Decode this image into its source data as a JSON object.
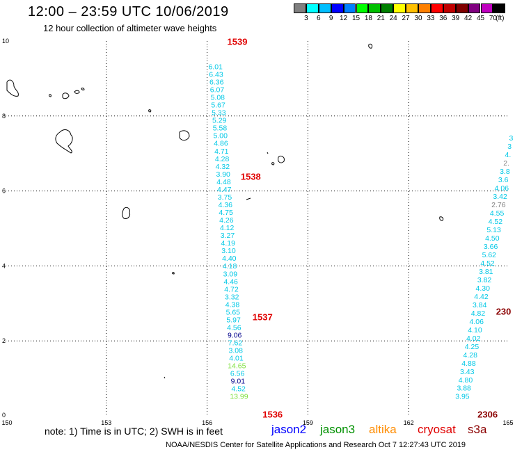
{
  "header": {
    "title": "12:00 – 23:59 UTC 10/06/2019",
    "subtitle": "12 hour collection of altimeter wave heights"
  },
  "colorbar": {
    "colors": [
      "#808080",
      "#00ffff",
      "#00bfff",
      "#0000ff",
      "#0080ff",
      "#00ff00",
      "#00c000",
      "#008000",
      "#ffff00",
      "#ffc000",
      "#ff8000",
      "#ff0000",
      "#c00000",
      "#800000",
      "#800080",
      "#c000c0",
      "#000000"
    ],
    "labels": [
      "3",
      "6",
      "9",
      "12",
      "15",
      "18",
      "21",
      "24",
      "27",
      "30",
      "33",
      "36",
      "39",
      "42",
      "45",
      "70"
    ],
    "unit": "(ft)"
  },
  "axes": {
    "x_ticks": [
      "150",
      "153",
      "156",
      "159",
      "162",
      "165"
    ],
    "y_ticks": [
      "10",
      "8",
      "6",
      "4",
      "2",
      "0"
    ]
  },
  "chart_data": {
    "type": "scatter",
    "xlim": [
      150,
      165
    ],
    "ylim": [
      0,
      10
    ],
    "grid": true,
    "tracks": [
      {
        "color": "#00c8e6",
        "lon_start": 156.25,
        "lat_start": 9.25,
        "lon_end": 156.95,
        "lat_end": 0.45,
        "values": [
          "6.01",
          "6.43",
          "6.36",
          "6.07",
          "5.08",
          "5.67",
          "5.33",
          "5.29",
          "5.58",
          "5.00",
          "4.86",
          "4.71",
          "4.28",
          "4.32",
          "3.90",
          "4.48",
          "4.47",
          "3.75",
          "4.36",
          "4.75",
          "4.26",
          "4.12",
          "3.27",
          "4.19",
          "3.10",
          "4.40",
          "4.18",
          "3.09",
          "4.46",
          "4.72",
          "3.32",
          "4.38",
          "5.65",
          "5.97",
          "4.56",
          "9.06",
          "7.62",
          "3.08",
          "4.01",
          "14.65",
          "6.56",
          "9.01",
          "4.52",
          "13.99"
        ],
        "colors": {
          "35": "#00008b",
          "39": "#80e040",
          "41": "#00008b",
          "43": "#80e040"
        }
      },
      {
        "color": "#00c8e6",
        "lon_start": 165.05,
        "lat_start": 7.35,
        "lon_end": 163.6,
        "lat_end": 0.45,
        "values": [
          "3",
          "3",
          "4.",
          "2.",
          "3.8",
          "3.6",
          "4.06",
          "3.42",
          "2.76",
          "4.55",
          "4.52",
          "5.13",
          "4.50",
          "3.66",
          "5.62",
          "4.52",
          "3.81",
          "3.82",
          "4.30",
          "4.42",
          "3.84",
          "4.82",
          "4.06",
          "4.10",
          "4.02",
          "4.25",
          "4.28",
          "4.88",
          "3.43",
          "4.80",
          "3.88",
          "3.95"
        ],
        "colors": {
          "3": "#808080",
          "8": "#808080"
        }
      }
    ],
    "pass_times": [
      {
        "text": "1539",
        "lon": 156.6,
        "lat": 9.9,
        "color": "#e00000"
      },
      {
        "text": "1538",
        "lon": 157.0,
        "lat": 6.3,
        "color": "#e00000"
      },
      {
        "text": "1537",
        "lon": 157.35,
        "lat": 2.55,
        "color": "#e00000"
      },
      {
        "text": "1536",
        "lon": 157.65,
        "lat": -0.05,
        "color": "#e00000"
      },
      {
        "text": "230",
        "lon": 164.6,
        "lat": 2.7,
        "color": "#8b0000"
      },
      {
        "text": "2306",
        "lon": 164.05,
        "lat": -0.05,
        "color": "#8b0000"
      }
    ]
  },
  "legend": {
    "note": "note: 1) Time is in UTC; 2) SWH is in feet",
    "satellites": [
      {
        "name": "jason2",
        "color": "#0000ff"
      },
      {
        "name": "jason3",
        "color": "#009000"
      },
      {
        "name": "altika",
        "color": "#ff8c00"
      },
      {
        "name": "cryosat",
        "color": "#e00000"
      },
      {
        "name": "s3a",
        "color": "#8b0000"
      }
    ]
  },
  "footer": "NOAA/NESDIS Center for Satellite Applications and Research    Oct  7 12:27:43 UTC 2019"
}
